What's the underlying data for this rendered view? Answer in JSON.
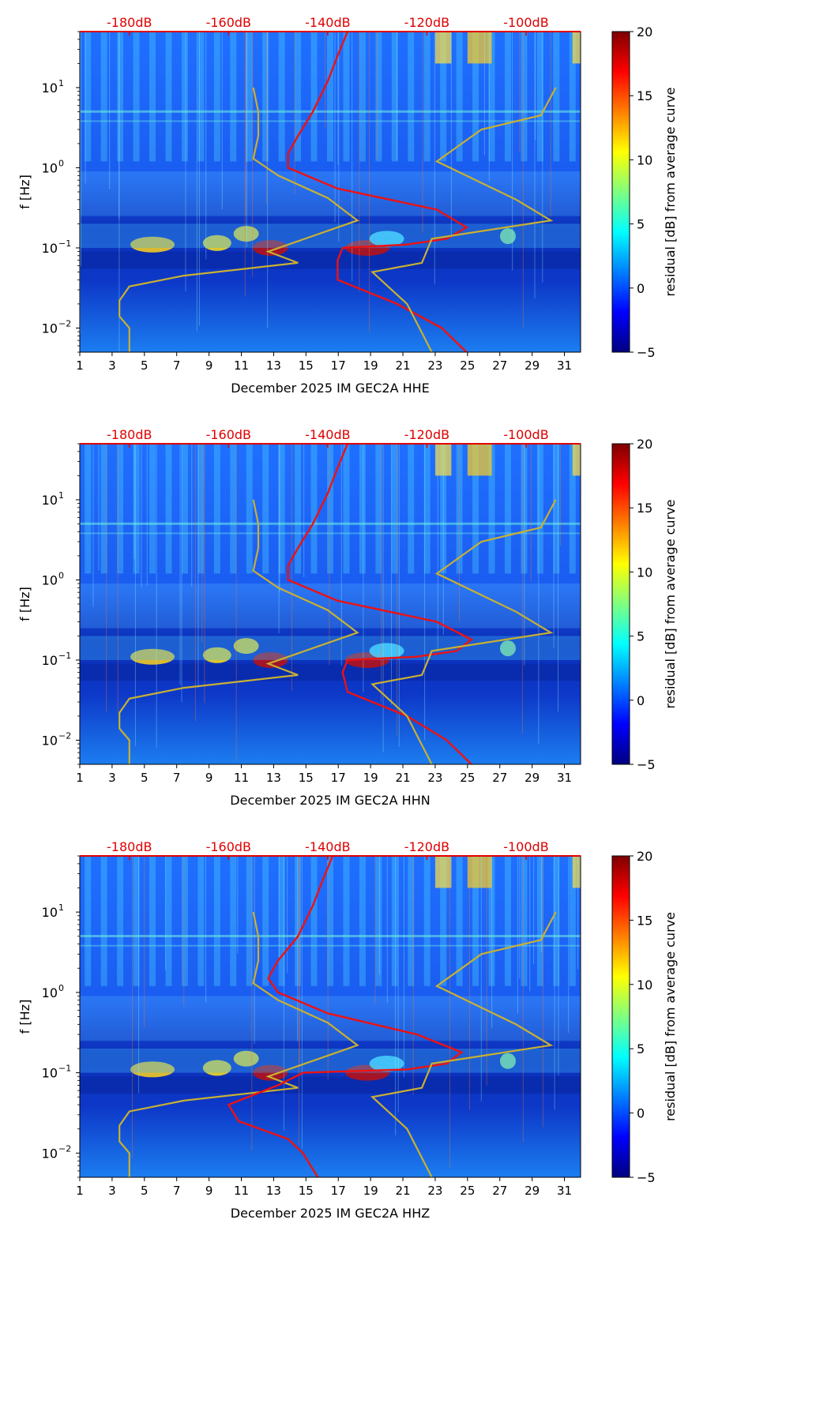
{
  "colors": {
    "noise_model": "#c8b032",
    "median_psd": "#ee1111",
    "db_axis": "#e00000",
    "colormap": [
      "#00007f",
      "#0000ff",
      "#007fff",
      "#00ffff",
      "#7fff7f",
      "#ffff00",
      "#ff7f00",
      "#ff0000",
      "#7f0000"
    ]
  },
  "chart_data": [
    {
      "type": "heatmap",
      "title": "",
      "xlabel": "December 2025 IM GEC2A  HHE",
      "ylabel": "f [Hz]",
      "x_ticks": [
        "1",
        "3",
        "5",
        "7",
        "9",
        "11",
        "13",
        "15",
        "17",
        "19",
        "21",
        "23",
        "25",
        "27",
        "29",
        "31"
      ],
      "xlim": [
        1,
        32
      ],
      "ylim": [
        0.005,
        50
      ],
      "yscale": "log",
      "y_ticks": [
        {
          "value": 0.01,
          "base": "10",
          "exp": "−2"
        },
        {
          "value": 0.1,
          "base": "10",
          "exp": "−1"
        },
        {
          "value": 1,
          "base": "10",
          "exp": "0"
        },
        {
          "value": 10,
          "base": "10",
          "exp": "1"
        }
      ],
      "top_axis_ticks": [
        "-180dB",
        "-160dB",
        "-140dB",
        "-120dB",
        "-100dB"
      ],
      "top_axis_values": [
        -180,
        -160,
        -140,
        -120,
        -100
      ],
      "top_axis_range": [
        -190,
        -89
      ],
      "colorbar": {
        "label": "residual [dB] from average curve",
        "range": [
          -5,
          20
        ],
        "ticks": [
          "−5",
          "0",
          "5",
          "10",
          "15",
          "20"
        ],
        "tick_values": [
          -5,
          0,
          5,
          10,
          15,
          20
        ]
      },
      "series": [
        {
          "values": [
            [
              -155,
              10
            ],
            [
              -154,
              5
            ],
            [
              -154,
              2.5
            ],
            [
              -155,
              1.3
            ],
            [
              -150,
              0.8
            ],
            [
              -140,
              0.42
            ],
            [
              -134,
              0.22
            ],
            [
              -152,
              0.09
            ],
            [
              -146,
              0.065
            ],
            [
              -169,
              0.045
            ],
            [
              -180,
              0.033
            ],
            [
              -182,
              0.022
            ],
            [
              -182,
              0.014
            ],
            [
              -180,
              0.01
            ],
            [
              -180,
              0.005
            ]
          ]
        },
        {
          "values": [
            [
              -136,
              50
            ],
            [
              -138,
              25
            ],
            [
              -140,
              12
            ],
            [
              -143,
              5
            ],
            [
              -146,
              2.5
            ],
            [
              -148,
              1.5
            ],
            [
              -148,
              1.0
            ],
            [
              -138,
              0.55
            ],
            [
              -118,
              0.3
            ],
            [
              -112,
              0.18
            ],
            [
              -116,
              0.13
            ],
            [
              -124,
              0.11
            ],
            [
              -137,
              0.1
            ],
            [
              -138,
              0.07
            ],
            [
              -138,
              0.04
            ],
            [
              -126,
              0.02
            ],
            [
              -117,
              0.01
            ],
            [
              -112,
              0.005
            ]
          ]
        },
        {
          "values": [
            [
              -94,
              10
            ],
            [
              -97,
              4.5
            ],
            [
              -109,
              3
            ],
            [
              -118,
              1.2
            ],
            [
              -102,
              0.4
            ],
            [
              -95,
              0.22
            ],
            [
              -119,
              0.13
            ],
            [
              -121,
              0.065
            ],
            [
              -131,
              0.05
            ],
            [
              -124,
              0.02
            ],
            [
              -119,
              0.005
            ]
          ]
        }
      ]
    },
    {
      "type": "heatmap",
      "title": "",
      "xlabel": "December 2025 IM GEC2A  HHN",
      "ylabel": "f [Hz]",
      "x_ticks": [
        "1",
        "3",
        "5",
        "7",
        "9",
        "11",
        "13",
        "15",
        "17",
        "19",
        "21",
        "23",
        "25",
        "27",
        "29",
        "31"
      ],
      "xlim": [
        1,
        32
      ],
      "ylim": [
        0.005,
        50
      ],
      "yscale": "log",
      "y_ticks": [
        {
          "value": 0.01,
          "base": "10",
          "exp": "−2"
        },
        {
          "value": 0.1,
          "base": "10",
          "exp": "−1"
        },
        {
          "value": 1,
          "base": "10",
          "exp": "0"
        },
        {
          "value": 10,
          "base": "10",
          "exp": "1"
        }
      ],
      "top_axis_ticks": [
        "-180dB",
        "-160dB",
        "-140dB",
        "-120dB",
        "-100dB"
      ],
      "top_axis_values": [
        -180,
        -160,
        -140,
        -120,
        -100
      ],
      "top_axis_range": [
        -190,
        -89
      ],
      "colorbar": {
        "label": "residual [dB] from average curve",
        "range": [
          -5,
          20
        ],
        "ticks": [
          "−5",
          "0",
          "5",
          "10",
          "15",
          "20"
        ],
        "tick_values": [
          -5,
          0,
          5,
          10,
          15,
          20
        ]
      },
      "series": [
        {
          "values": [
            [
              -155,
              10
            ],
            [
              -154,
              5
            ],
            [
              -154,
              2.5
            ],
            [
              -155,
              1.3
            ],
            [
              -150,
              0.8
            ],
            [
              -140,
              0.42
            ],
            [
              -134,
              0.22
            ],
            [
              -152,
              0.09
            ],
            [
              -146,
              0.065
            ],
            [
              -169,
              0.045
            ],
            [
              -180,
              0.033
            ],
            [
              -182,
              0.022
            ],
            [
              -182,
              0.014
            ],
            [
              -180,
              0.01
            ],
            [
              -180,
              0.005
            ]
          ]
        },
        {
          "values": [
            [
              -136,
              50
            ],
            [
              -138,
              25
            ],
            [
              -140,
              12
            ],
            [
              -143,
              5
            ],
            [
              -146,
              2.5
            ],
            [
              -148,
              1.5
            ],
            [
              -148,
              1.0
            ],
            [
              -138,
              0.55
            ],
            [
              -118,
              0.3
            ],
            [
              -111,
              0.18
            ],
            [
              -114,
              0.13
            ],
            [
              -122,
              0.11
            ],
            [
              -136,
              0.1
            ],
            [
              -137,
              0.07
            ],
            [
              -136,
              0.04
            ],
            [
              -124,
              0.02
            ],
            [
              -116,
              0.01
            ],
            [
              -111,
              0.005
            ]
          ]
        },
        {
          "values": [
            [
              -94,
              10
            ],
            [
              -97,
              4.5
            ],
            [
              -109,
              3
            ],
            [
              -118,
              1.2
            ],
            [
              -102,
              0.4
            ],
            [
              -95,
              0.22
            ],
            [
              -119,
              0.13
            ],
            [
              -121,
              0.065
            ],
            [
              -131,
              0.05
            ],
            [
              -124,
              0.02
            ],
            [
              -119,
              0.005
            ]
          ]
        }
      ]
    },
    {
      "type": "heatmap",
      "title": "",
      "xlabel": "December 2025 IM GEC2A  HHZ",
      "ylabel": "f [Hz]",
      "x_ticks": [
        "1",
        "3",
        "5",
        "7",
        "9",
        "11",
        "13",
        "15",
        "17",
        "19",
        "21",
        "23",
        "25",
        "27",
        "29",
        "31"
      ],
      "xlim": [
        1,
        32
      ],
      "ylim": [
        0.005,
        50
      ],
      "yscale": "log",
      "y_ticks": [
        {
          "value": 0.01,
          "base": "10",
          "exp": "−2"
        },
        {
          "value": 0.1,
          "base": "10",
          "exp": "−1"
        },
        {
          "value": 1,
          "base": "10",
          "exp": "0"
        },
        {
          "value": 10,
          "base": "10",
          "exp": "1"
        }
      ],
      "top_axis_ticks": [
        "-180dB",
        "-160dB",
        "-140dB",
        "-120dB",
        "-100dB"
      ],
      "top_axis_values": [
        -180,
        -160,
        -140,
        -120,
        -100
      ],
      "top_axis_range": [
        -190,
        -89
      ],
      "colorbar": {
        "label": "residual [dB] from average curve",
        "range": [
          -5,
          20
        ],
        "ticks": [
          "−5",
          "0",
          "5",
          "10",
          "15",
          "20"
        ],
        "tick_values": [
          -5,
          0,
          5,
          10,
          15,
          20
        ]
      },
      "series": [
        {
          "values": [
            [
              -155,
              10
            ],
            [
              -154,
              5
            ],
            [
              -154,
              2.5
            ],
            [
              -155,
              1.3
            ],
            [
              -150,
              0.8
            ],
            [
              -140,
              0.42
            ],
            [
              -134,
              0.22
            ],
            [
              -152,
              0.09
            ],
            [
              -146,
              0.065
            ],
            [
              -169,
              0.045
            ],
            [
              -180,
              0.033
            ],
            [
              -182,
              0.022
            ],
            [
              -182,
              0.014
            ],
            [
              -180,
              0.01
            ],
            [
              -180,
              0.005
            ]
          ]
        },
        {
          "values": [
            [
              -139,
              50
            ],
            [
              -141,
              25
            ],
            [
              -143,
              12
            ],
            [
              -146,
              5
            ],
            [
              -150,
              2.5
            ],
            [
              -152,
              1.5
            ],
            [
              -150,
              1.0
            ],
            [
              -140,
              0.55
            ],
            [
              -122,
              0.3
            ],
            [
              -113,
              0.18
            ],
            [
              -116,
              0.13
            ],
            [
              -124,
              0.11
            ],
            [
              -145,
              0.1
            ],
            [
              -150,
              0.07
            ],
            [
              -160,
              0.04
            ],
            [
              -158,
              0.025
            ],
            [
              -148,
              0.015
            ],
            [
              -145,
              0.01
            ],
            [
              -142,
              0.005
            ]
          ]
        },
        {
          "values": [
            [
              -94,
              10
            ],
            [
              -97,
              4.5
            ],
            [
              -109,
              3
            ],
            [
              -118,
              1.2
            ],
            [
              -102,
              0.4
            ],
            [
              -95,
              0.22
            ],
            [
              -119,
              0.13
            ],
            [
              -121,
              0.065
            ],
            [
              -131,
              0.05
            ],
            [
              -124,
              0.02
            ],
            [
              -119,
              0.005
            ]
          ]
        }
      ]
    }
  ]
}
